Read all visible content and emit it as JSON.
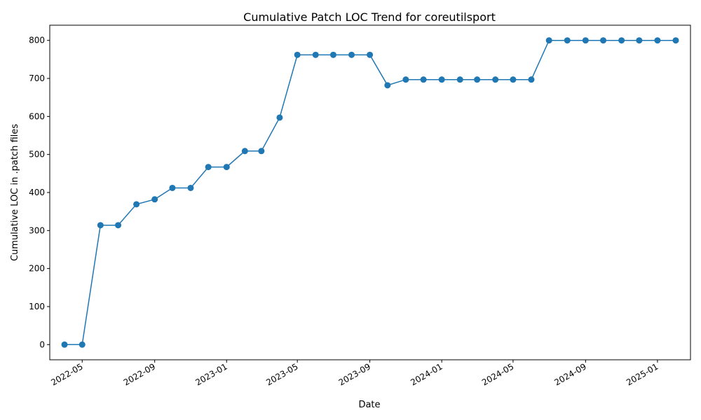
{
  "chart_data": {
    "type": "line",
    "title": "Cumulative Patch LOC Trend for coreutilsport",
    "xlabel": "Date",
    "ylabel": "Cumulative LOC in .patch files",
    "color": "#1f77b4",
    "marker": "circle",
    "grid": false,
    "legend": "none",
    "xlim": [
      "2022-03-07",
      "2025-02-26"
    ],
    "ylim": [
      -40,
      840
    ],
    "x_ticks": [
      "2022-05",
      "2022-09",
      "2023-01",
      "2023-05",
      "2023-09",
      "2024-01",
      "2024-05",
      "2024-09",
      "2025-01"
    ],
    "y_ticks": [
      0,
      100,
      200,
      300,
      400,
      500,
      600,
      700,
      800
    ],
    "series": [
      {
        "x": [
          "2022-04-01",
          "2022-05-01",
          "2022-06-01",
          "2022-07-01",
          "2022-08-01",
          "2022-09-01",
          "2022-10-01",
          "2022-11-01",
          "2022-12-01",
          "2023-01-01",
          "2023-02-01",
          "2023-03-01",
          "2023-04-01",
          "2023-05-01",
          "2023-06-01",
          "2023-07-01",
          "2023-08-01",
          "2023-09-01",
          "2023-10-01",
          "2023-11-01",
          "2023-12-01",
          "2024-01-01",
          "2024-02-01",
          "2024-03-01",
          "2024-04-01",
          "2024-05-01",
          "2024-06-01",
          "2024-07-01",
          "2024-08-01",
          "2024-09-01",
          "2024-10-01",
          "2024-11-01",
          "2024-12-01",
          "2025-01-01",
          "2025-02-01"
        ],
        "values": [
          0,
          0,
          314,
          314,
          369,
          382,
          412,
          412,
          467,
          467,
          509,
          509,
          597,
          762,
          762,
          762,
          762,
          762,
          682,
          697,
          697,
          697,
          697,
          697,
          697,
          697,
          697,
          800,
          800,
          800,
          800,
          800,
          800,
          800,
          800
        ]
      }
    ]
  }
}
